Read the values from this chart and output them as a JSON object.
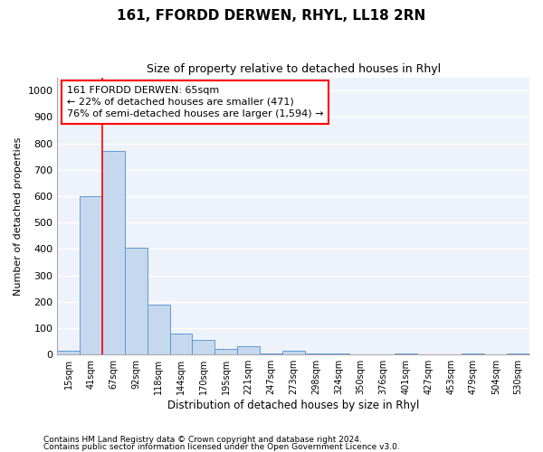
{
  "title": "161, FFORDD DERWEN, RHYL, LL18 2RN",
  "subtitle": "Size of property relative to detached houses in Rhyl",
  "xlabel": "Distribution of detached houses by size in Rhyl",
  "ylabel": "Number of detached properties",
  "bar_color": "#c5d8ed",
  "bar_edge_color": "#5b9bd5",
  "background_color": "#eef2fa",
  "grid_color": "#ffffff",
  "categories": [
    "15sqm",
    "41sqm",
    "67sqm",
    "92sqm",
    "118sqm",
    "144sqm",
    "170sqm",
    "195sqm",
    "221sqm",
    "247sqm",
    "273sqm",
    "298sqm",
    "324sqm",
    "350sqm",
    "376sqm",
    "401sqm",
    "427sqm",
    "453sqm",
    "479sqm",
    "504sqm",
    "530sqm"
  ],
  "values": [
    15,
    600,
    770,
    405,
    190,
    78,
    55,
    20,
    30,
    5,
    15,
    5,
    5,
    0,
    0,
    5,
    0,
    0,
    5,
    0,
    5
  ],
  "ylim": [
    0,
    1050
  ],
  "yticks": [
    0,
    100,
    200,
    300,
    400,
    500,
    600,
    700,
    800,
    900,
    1000
  ],
  "annotation_text": "161 FFORDD DERWEN: 65sqm\n← 22% of detached houses are smaller (471)\n76% of semi-detached houses are larger (1,594) →",
  "footer_line1": "Contains HM Land Registry data © Crown copyright and database right 2024.",
  "footer_line2": "Contains public sector information licensed under the Open Government Licence v3.0.",
  "red_line_x": 1.5
}
